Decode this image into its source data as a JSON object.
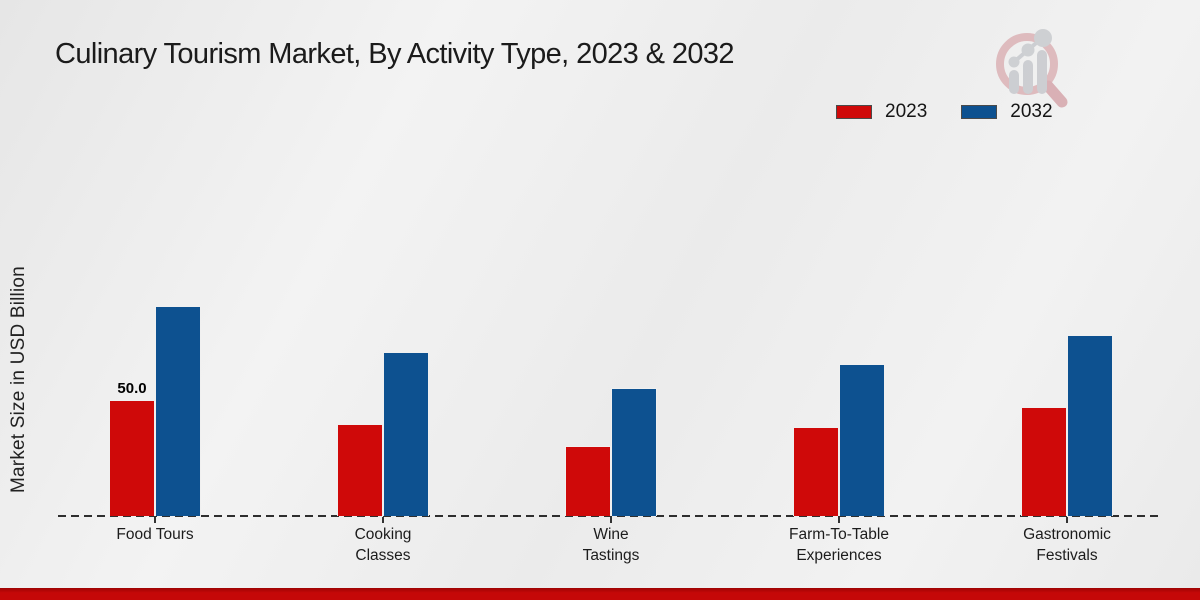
{
  "title": "Culinary Tourism Market, By Activity Type, 2023 & 2032",
  "ylabel": "Market Size in USD Billion",
  "legend": {
    "items": [
      {
        "label": "2023",
        "color": "#cf0909"
      },
      {
        "label": "2032",
        "color": "#0d5190"
      }
    ]
  },
  "accent_colors": {
    "series_2023": "#cf0909",
    "series_2032": "#0d5190",
    "bottom_strip": "#c50808",
    "axis_dash": "#2e2e2e"
  },
  "chart_data": {
    "type": "bar",
    "title": "Culinary Tourism Market, By Activity Type, 2023 & 2032",
    "xlabel": "",
    "ylabel": "Market Size in USD Billion",
    "grid": false,
    "legend_position": "top-right",
    "baseline_style": "dashed",
    "ylim": [
      0,
      100
    ],
    "categories": [
      "Food Tours",
      "Cooking Classes",
      "Wine Tastings",
      "Farm-To-Table Experiences",
      "Gastronomic Festivals"
    ],
    "category_lines": [
      [
        "Food Tours"
      ],
      [
        "Cooking",
        "Classes"
      ],
      [
        "Wine",
        "Tastings"
      ],
      [
        "Farm-To-Table",
        "Experiences"
      ],
      [
        "Gastronomic",
        "Festivals"
      ]
    ],
    "series": [
      {
        "name": "2023",
        "color": "#cf0909",
        "values": [
          50.0,
          39.5,
          30.0,
          38.5,
          47.0
        ],
        "value_labels": [
          "50.0",
          "",
          "",
          "",
          ""
        ]
      },
      {
        "name": "2032",
        "color": "#0d5190",
        "values": [
          90.5,
          70.5,
          55.0,
          65.5,
          78.0
        ],
        "value_labels": [
          "",
          "",
          "",
          "",
          ""
        ]
      }
    ]
  }
}
